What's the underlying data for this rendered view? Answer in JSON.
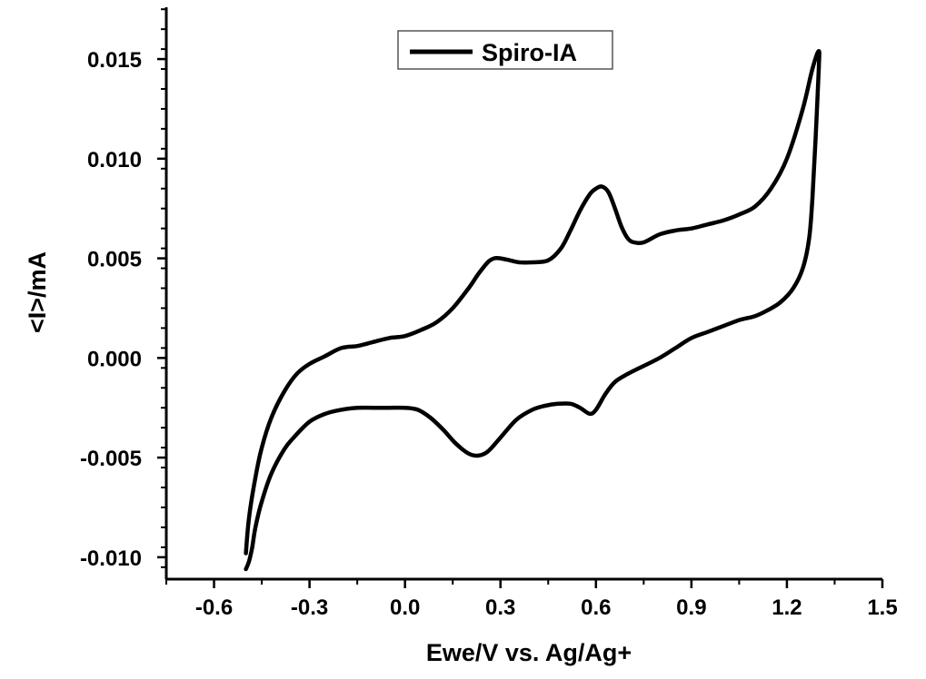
{
  "chart_data": {
    "type": "line",
    "xlabel": "Ewe/V vs. Ag/Ag+",
    "ylabel": "<I>/mA",
    "xlim": [
      -0.75,
      1.5
    ],
    "ylim": [
      -0.0111,
      0.0176
    ],
    "x_ticks": [
      -0.6,
      -0.3,
      0.0,
      0.3,
      0.6,
      0.9,
      1.2,
      1.5
    ],
    "x_tick_labels": [
      "-0.6",
      "-0.3",
      "0.0",
      "0.3",
      "0.6",
      "0.9",
      "1.2",
      "1.5"
    ],
    "y_ticks": [
      -0.01,
      -0.005,
      0.0,
      0.005,
      0.01,
      0.015
    ],
    "y_tick_labels": [
      "-0.010",
      "-0.005",
      "0.000",
      "0.005",
      "0.010",
      "0.015"
    ],
    "grid": false,
    "legend": {
      "position": "top-center",
      "entries": [
        "Spiro-IA"
      ]
    },
    "series": [
      {
        "name": "Spiro-IA",
        "color": "#000000",
        "x": [
          -0.5,
          -0.49,
          -0.47,
          -0.45,
          -0.42,
          -0.38,
          -0.34,
          -0.3,
          -0.25,
          -0.2,
          -0.15,
          -0.1,
          -0.05,
          0.0,
          0.05,
          0.1,
          0.15,
          0.2,
          0.23,
          0.26,
          0.28,
          0.3,
          0.33,
          0.36,
          0.4,
          0.45,
          0.49,
          0.52,
          0.55,
          0.58,
          0.6,
          0.62,
          0.64,
          0.66,
          0.68,
          0.7,
          0.72,
          0.75,
          0.8,
          0.85,
          0.9,
          0.95,
          1.0,
          1.05,
          1.1,
          1.15,
          1.2,
          1.25,
          1.28,
          1.3,
          1.3,
          1.29,
          1.28,
          1.27,
          1.25,
          1.22,
          1.18,
          1.14,
          1.1,
          1.05,
          1.0,
          0.95,
          0.9,
          0.85,
          0.8,
          0.75,
          0.7,
          0.66,
          0.63,
          0.6,
          0.58,
          0.55,
          0.52,
          0.48,
          0.44,
          0.4,
          0.35,
          0.3,
          0.26,
          0.23,
          0.2,
          0.16,
          0.12,
          0.08,
          0.04,
          0.0,
          -0.05,
          -0.1,
          -0.15,
          -0.2,
          -0.25,
          -0.3,
          -0.35,
          -0.38,
          -0.42,
          -0.45,
          -0.47,
          -0.48,
          -0.49,
          -0.5
        ],
        "y": [
          -0.0098,
          -0.008,
          -0.006,
          -0.0045,
          -0.003,
          -0.0017,
          -0.0008,
          -0.0003,
          0.0001,
          0.0005,
          0.0006,
          0.0008,
          0.001,
          0.0011,
          0.0014,
          0.0018,
          0.0025,
          0.0035,
          0.0042,
          0.0048,
          0.005,
          0.005,
          0.0049,
          0.0048,
          0.0048,
          0.0049,
          0.0055,
          0.0064,
          0.0074,
          0.0082,
          0.0085,
          0.0086,
          0.0083,
          0.0075,
          0.0066,
          0.006,
          0.0058,
          0.0058,
          0.0062,
          0.0064,
          0.0065,
          0.0067,
          0.0069,
          0.0072,
          0.0076,
          0.0085,
          0.01,
          0.0125,
          0.0145,
          0.0154,
          0.0145,
          0.011,
          0.008,
          0.006,
          0.0045,
          0.0035,
          0.0028,
          0.0024,
          0.0021,
          0.0019,
          0.0016,
          0.0013,
          0.001,
          0.0005,
          0.0,
          -0.0004,
          -0.0008,
          -0.0012,
          -0.0018,
          -0.0026,
          -0.0028,
          -0.0025,
          -0.0023,
          -0.0023,
          -0.0024,
          -0.0026,
          -0.0031,
          -0.004,
          -0.0047,
          -0.0049,
          -0.0048,
          -0.0043,
          -0.0036,
          -0.003,
          -0.0026,
          -0.0025,
          -0.0025,
          -0.0025,
          -0.0025,
          -0.0026,
          -0.0028,
          -0.0032,
          -0.004,
          -0.0046,
          -0.0058,
          -0.0072,
          -0.0085,
          -0.0095,
          -0.0102,
          -0.0106
        ]
      }
    ]
  }
}
